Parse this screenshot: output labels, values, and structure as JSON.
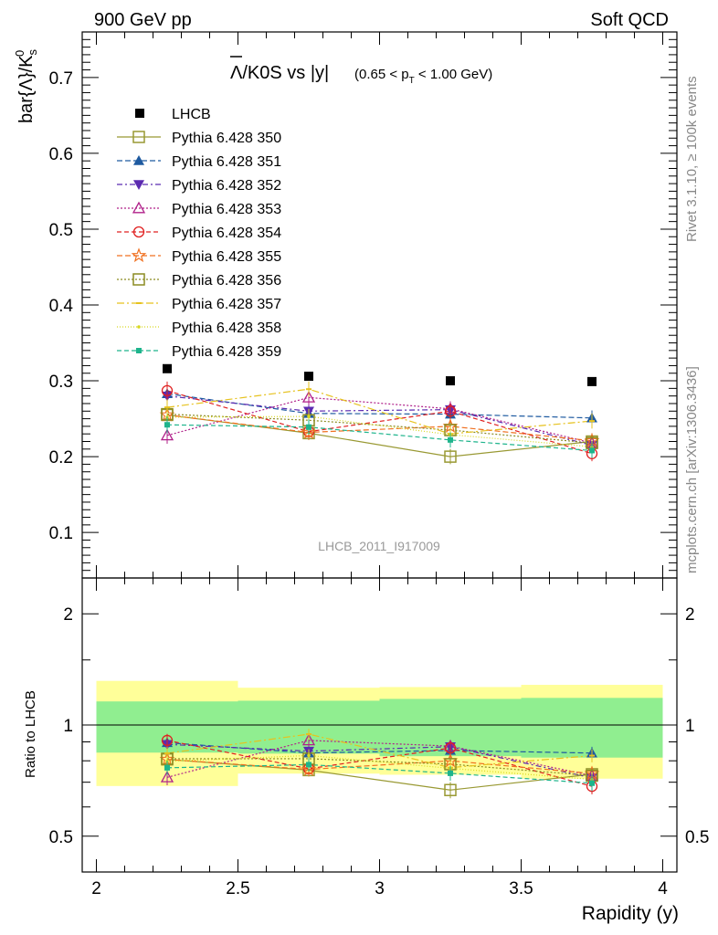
{
  "header": {
    "left": "900 GeV pp",
    "right": "Soft QCD"
  },
  "chart_data": {
    "type": "scatter",
    "title": "Λ/K0S vs |y|",
    "title_cut": "(0.65 < p",
    "title_cut_sub": "T",
    "title_cut_end": " < 1.00 GeV)",
    "ylabel": "bar{Λ}/K",
    "ylabel_sub": "s",
    "ylabel_sup": "0",
    "ratio_ylabel": "Ratio to LHCB",
    "xlabel": "Rapidity (y)",
    "analysis_label": "LHCB_2011_I917009",
    "side_top": "Rivet 3.1.10, ≥ 100k events",
    "side_bottom": "mcplots.cern.ch [arXiv:1306.3436]",
    "xlim": [
      1.95,
      4.05
    ],
    "ylim": [
      0.04,
      0.76
    ],
    "ratio_ylim": [
      0.4,
      2.5
    ],
    "x_ticks": [
      "2",
      "2.5",
      "3",
      "3.5",
      "4"
    ],
    "x_tick_values": [
      2,
      2.5,
      3,
      3.5,
      4
    ],
    "y_ticks": [
      "0.1",
      "0.2",
      "0.3",
      "0.4",
      "0.5",
      "0.6",
      "0.7"
    ],
    "y_tick_values": [
      0.1,
      0.2,
      0.3,
      0.4,
      0.5,
      0.6,
      0.7
    ],
    "ratio_ticks": [
      "0.5",
      "1",
      "2"
    ],
    "ratio_tick_values": [
      0.5,
      1,
      2
    ],
    "x": [
      2.25,
      2.75,
      3.25,
      3.75
    ],
    "bins": [
      [
        2.0,
        2.5
      ],
      [
        2.5,
        3.0
      ],
      [
        3.0,
        3.5
      ],
      [
        3.5,
        4.0
      ]
    ],
    "data": {
      "name": "LHCB",
      "values": [
        0.316,
        0.306,
        0.3,
        0.299
      ],
      "err_inner": [
        0.05,
        0.05,
        0.053,
        0.055
      ],
      "err_outer": [
        0.1,
        0.08,
        0.08,
        0.085
      ],
      "colors": {
        "inner": "#90ee90",
        "outer": "#ffff99"
      }
    },
    "series": [
      {
        "name": "Pythia 6.428 350",
        "color": "#999933",
        "marker": "square-open",
        "dash": "",
        "values": [
          0.255,
          0.231,
          0.2,
          0.22
        ],
        "err": [
          0.01,
          0.009,
          0.01,
          0.01
        ]
      },
      {
        "name": "Pythia 6.428 351",
        "color": "#1e5aa0",
        "marker": "triangle-up",
        "dash": "6,3",
        "values": [
          0.283,
          0.257,
          0.256,
          0.251
        ],
        "err": [
          0.012,
          0.01,
          0.01,
          0.01
        ]
      },
      {
        "name": "Pythia 6.428 352",
        "color": "#5b2ab0",
        "marker": "triangle-down",
        "dash": "6,3,2,3",
        "values": [
          0.28,
          0.26,
          0.262,
          0.215
        ],
        "err": [
          0.012,
          0.01,
          0.01,
          0.01
        ]
      },
      {
        "name": "Pythia 6.428 353",
        "color": "#b0218a",
        "marker": "triangle-open",
        "dash": "2,2",
        "values": [
          0.228,
          0.278,
          0.263,
          0.218
        ],
        "err": [
          0.011,
          0.01,
          0.01,
          0.01
        ]
      },
      {
        "name": "Pythia 6.428 354",
        "color": "#e02020",
        "marker": "circle-open",
        "dash": "5,3",
        "values": [
          0.287,
          0.233,
          0.26,
          0.204
        ],
        "err": [
          0.012,
          0.01,
          0.01,
          0.01
        ]
      },
      {
        "name": "Pythia 6.428 355",
        "color": "#f07020",
        "marker": "star-open",
        "dash": "6,3",
        "values": [
          0.255,
          0.232,
          0.24,
          0.221
        ],
        "err": [
          0.011,
          0.01,
          0.01,
          0.01
        ]
      },
      {
        "name": "Pythia 6.428 356",
        "color": "#8c8c22",
        "marker": "square-open",
        "dash": "2,2",
        "values": [
          0.256,
          0.248,
          0.235,
          0.218
        ],
        "err": [
          0.011,
          0.01,
          0.01,
          0.01
        ]
      },
      {
        "name": "Pythia 6.428 357",
        "color": "#e6c21e",
        "marker": "dash",
        "dash": "8,3,2,3",
        "values": [
          0.265,
          0.289,
          0.23,
          0.247
        ],
        "err": [
          0.011,
          0.01,
          0.01,
          0.01
        ]
      },
      {
        "name": "Pythia 6.428 358",
        "color": "#d8d820",
        "marker": "dot",
        "dash": "1,2",
        "values": [
          0.252,
          0.253,
          0.229,
          0.213
        ],
        "err": [
          0.011,
          0.01,
          0.01,
          0.01
        ]
      },
      {
        "name": "Pythia 6.428 359",
        "color": "#1eb48c",
        "marker": "square-filled",
        "dash": "5,3",
        "values": [
          0.242,
          0.239,
          0.222,
          0.208
        ],
        "err": [
          0.011,
          0.01,
          0.01,
          0.01
        ]
      }
    ],
    "grid": false,
    "legend_position": "top-left"
  }
}
